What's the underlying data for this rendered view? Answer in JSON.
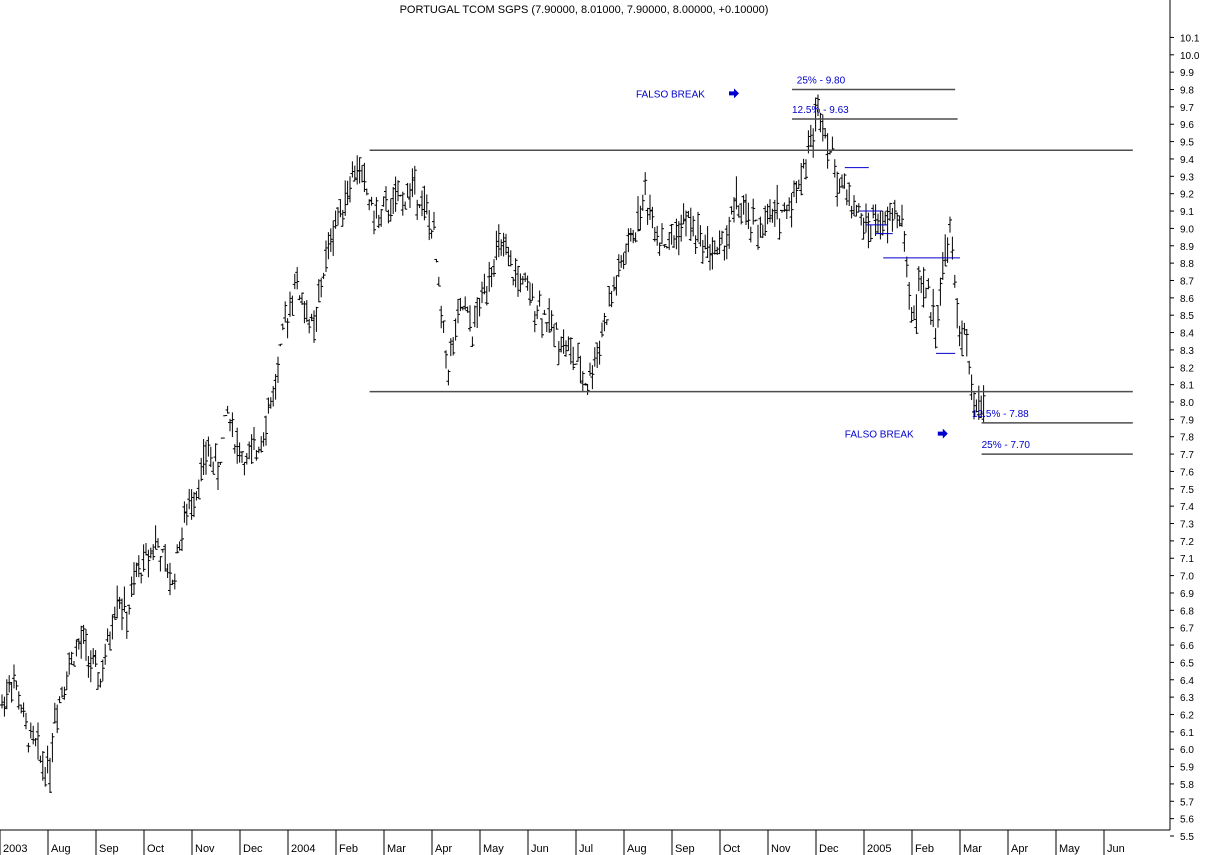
{
  "chart_data": {
    "type": "ohlc-bar",
    "title": "PORTUGAL TCOM SGPS (7.90000, 8.01000, 7.90000, 8.00000, +0.10000)",
    "y_axis": {
      "position": "right",
      "ylim": [
        5.45,
        10.18
      ],
      "ticks": [
        5.5,
        5.6,
        5.7,
        5.8,
        5.9,
        6.0,
        6.1,
        6.2,
        6.3,
        6.4,
        6.5,
        6.6,
        6.7,
        6.8,
        6.9,
        7.0,
        7.1,
        7.2,
        7.3,
        7.4,
        7.5,
        7.6,
        7.7,
        7.8,
        7.9,
        8.0,
        8.1,
        8.2,
        8.3,
        8.4,
        8.5,
        8.6,
        8.7,
        8.8,
        8.9,
        9.0,
        9.1,
        9.2,
        9.3,
        9.4,
        9.5,
        9.6,
        9.7,
        9.8,
        9.9,
        10.0,
        10.1
      ],
      "tick_labels": [
        "5.5",
        "5.6",
        "5.7",
        "5.8",
        "5.9",
        "6.0",
        "6.1",
        "6.2",
        "6.3",
        "6.4",
        "6.5",
        "6.6",
        "6.7",
        "6.8",
        "6.9",
        "7.0",
        "7.1",
        "7.2",
        "7.3",
        "7.4",
        "7.5",
        "7.6",
        "7.7",
        "7.8",
        "7.9",
        "8.0",
        "8.1",
        "8.2",
        "8.3",
        "8.4",
        "8.5",
        "8.6",
        "8.7",
        "8.8",
        "8.9",
        "9.0",
        "9.1",
        "9.2",
        "9.3",
        "9.4",
        "9.5",
        "9.6",
        "9.7",
        "9.8",
        "9.9",
        "10.0",
        "10.1"
      ]
    },
    "x_axis": {
      "labels": [
        "2003",
        "Aug",
        "Sep",
        "Oct",
        "Nov",
        "Dec",
        "2004",
        "Feb",
        "Mar",
        "Apr",
        "May",
        "Jun",
        "Jul",
        "Aug",
        "Sep",
        "Oct",
        "Nov",
        "Dec",
        "2005",
        "Feb",
        "Mar",
        "Apr",
        "May",
        "Jun"
      ],
      "month_index": [
        0,
        1,
        2,
        3,
        4,
        5,
        6,
        7,
        8,
        9,
        10,
        11,
        12,
        13,
        14,
        15,
        16,
        17,
        18,
        19,
        20,
        21,
        22,
        23
      ],
      "extent_months": [
        -0.8,
        23.6
      ]
    },
    "price_path": [
      [
        0.0,
        6.25
      ],
      [
        0.2,
        6.42
      ],
      [
        0.35,
        6.3
      ],
      [
        0.5,
        6.1
      ],
      [
        0.7,
        6.02
      ],
      [
        0.85,
        5.92
      ],
      [
        1.0,
        5.9
      ],
      [
        1.1,
        6.2
      ],
      [
        1.3,
        6.4
      ],
      [
        1.5,
        6.55
      ],
      [
        1.7,
        6.62
      ],
      [
        1.9,
        6.45
      ],
      [
        2.05,
        6.4
      ],
      [
        2.2,
        6.58
      ],
      [
        2.4,
        6.9
      ],
      [
        2.6,
        6.75
      ],
      [
        2.8,
        7.0
      ],
      [
        3.0,
        7.1
      ],
      [
        3.2,
        7.2
      ],
      [
        3.4,
        7.05
      ],
      [
        3.55,
        6.95
      ],
      [
        3.7,
        7.2
      ],
      [
        3.9,
        7.4
      ],
      [
        4.1,
        7.55
      ],
      [
        4.3,
        7.72
      ],
      [
        4.5,
        7.6
      ],
      [
        4.7,
        7.95
      ],
      [
        4.9,
        7.75
      ],
      [
        5.1,
        7.65
      ],
      [
        5.3,
        7.72
      ],
      [
        5.5,
        7.9
      ],
      [
        5.7,
        8.1
      ],
      [
        5.9,
        8.45
      ],
      [
        6.1,
        8.7
      ],
      [
        6.3,
        8.55
      ],
      [
        6.5,
        8.4
      ],
      [
        6.7,
        8.75
      ],
      [
        6.9,
        9.0
      ],
      [
        7.1,
        9.15
      ],
      [
        7.3,
        9.3
      ],
      [
        7.45,
        9.35
      ],
      [
        7.6,
        9.2
      ],
      [
        7.8,
        9.05
      ],
      [
        8.0,
        9.1
      ],
      [
        8.2,
        9.15
      ],
      [
        8.4,
        9.18
      ],
      [
        8.6,
        9.25
      ],
      [
        8.8,
        9.12
      ],
      [
        9.0,
        8.95
      ],
      [
        9.15,
        8.5
      ],
      [
        9.3,
        8.2
      ],
      [
        9.45,
        8.4
      ],
      [
        9.6,
        8.55
      ],
      [
        9.8,
        8.4
      ],
      [
        10.0,
        8.6
      ],
      [
        10.2,
        8.8
      ],
      [
        10.4,
        8.9
      ],
      [
        10.6,
        8.75
      ],
      [
        10.8,
        8.7
      ],
      [
        11.0,
        8.6
      ],
      [
        11.2,
        8.55
      ],
      [
        11.4,
        8.45
      ],
      [
        11.6,
        8.38
      ],
      [
        11.8,
        8.3
      ],
      [
        12.0,
        8.2
      ],
      [
        12.2,
        8.1
      ],
      [
        12.4,
        8.3
      ],
      [
        12.6,
        8.5
      ],
      [
        12.8,
        8.7
      ],
      [
        13.0,
        8.85
      ],
      [
        13.2,
        9.0
      ],
      [
        13.4,
        9.2
      ],
      [
        13.5,
        9.1
      ],
      [
        13.7,
        8.95
      ],
      [
        13.9,
        8.9
      ],
      [
        14.1,
        9.0
      ],
      [
        14.3,
        9.05
      ],
      [
        14.5,
        8.95
      ],
      [
        14.7,
        8.9
      ],
      [
        14.9,
        8.85
      ],
      [
        15.1,
        8.95
      ],
      [
        15.3,
        9.15
      ],
      [
        15.5,
        9.05
      ],
      [
        15.7,
        9.0
      ],
      [
        15.9,
        9.02
      ],
      [
        16.1,
        9.08
      ],
      [
        16.3,
        9.1
      ],
      [
        16.5,
        9.2
      ],
      [
        16.7,
        9.35
      ],
      [
        16.9,
        9.55
      ],
      [
        17.0,
        9.7
      ],
      [
        17.1,
        9.65
      ],
      [
        17.25,
        9.45
      ],
      [
        17.4,
        9.3
      ],
      [
        17.6,
        9.2
      ],
      [
        17.8,
        9.1
      ],
      [
        18.0,
        9.0
      ],
      [
        18.2,
        9.05
      ],
      [
        18.4,
        9.0
      ],
      [
        18.6,
        9.1
      ],
      [
        18.8,
        9.0
      ],
      [
        18.9,
        8.55
      ],
      [
        19.0,
        8.5
      ],
      [
        19.15,
        8.7
      ],
      [
        19.3,
        8.6
      ],
      [
        19.45,
        8.45
      ],
      [
        19.6,
        8.75
      ],
      [
        19.75,
        9.0
      ],
      [
        19.9,
        8.5
      ],
      [
        20.0,
        8.4
      ],
      [
        20.1,
        8.3
      ],
      [
        20.2,
        8.05
      ],
      [
        20.3,
        7.95
      ],
      [
        20.45,
        8.0
      ]
    ],
    "horizontal_lines": [
      {
        "y": 9.45,
        "x_start_month": 7.7,
        "x_end_month": 23.6
      },
      {
        "y": 8.06,
        "x_start_month": 7.7,
        "x_end_month": 23.6
      },
      {
        "y": 9.8,
        "x_start_month": 16.5,
        "x_end_month": 19.9
      },
      {
        "y": 9.63,
        "x_start_month": 16.5,
        "x_end_month": 19.95
      },
      {
        "y": 7.88,
        "x_start_month": 20.45,
        "x_end_month": 23.6
      },
      {
        "y": 7.7,
        "x_start_month": 20.45,
        "x_end_month": 23.6
      }
    ],
    "blue_segments": [
      {
        "y": 9.35,
        "x_start_month": 17.6,
        "x_end_month": 18.1
      },
      {
        "y": 9.1,
        "x_start_month": 17.9,
        "x_end_month": 18.35
      },
      {
        "y": 9.02,
        "x_start_month": 18.05,
        "x_end_month": 18.5
      },
      {
        "y": 8.97,
        "x_start_month": 18.25,
        "x_end_month": 18.6
      },
      {
        "y": 8.83,
        "x_start_month": 18.4,
        "x_end_month": 20.0
      },
      {
        "y": 8.28,
        "x_start_month": 19.5,
        "x_end_month": 19.9
      }
    ],
    "annotations": [
      {
        "text": "25% - 9.80",
        "y": 9.8,
        "x_month": 16.6
      },
      {
        "text": "12.5% - 9.63",
        "y": 9.63,
        "x_month": 16.5
      },
      {
        "text": "FALSO BREAK",
        "y": 9.72,
        "x_month": 13.25,
        "arrow": true
      },
      {
        "text": "12.5% - 7.88",
        "y": 7.88,
        "x_month": 20.25
      },
      {
        "text": "FALSO BREAK",
        "y": 7.76,
        "x_month": 17.6,
        "arrow": true
      },
      {
        "text": "25% - 7.70",
        "y": 7.7,
        "x_month": 20.45
      }
    ],
    "grid": false,
    "legend": "none",
    "colors": {
      "bars": "#000000",
      "support_resistance": "#4d4d4d",
      "annotation": "#0000cc",
      "axis": "#000000"
    }
  }
}
